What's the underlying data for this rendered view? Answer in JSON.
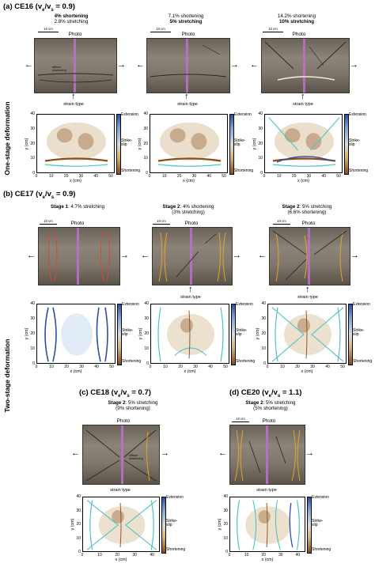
{
  "side_labels": {
    "one_stage": "One-stage deformation",
    "two_stage": "Two-stage deformation"
  },
  "sections": {
    "a": {
      "prefix": "(a) CE16 (v",
      "sub1": "e",
      "mid": "/v",
      "sub2": "s",
      "suffix": " = 0.9)"
    },
    "b": {
      "prefix": "(b) CE17 (v",
      "sub1": "e",
      "mid": "/v",
      "sub2": "s",
      "suffix": " = 0.9)"
    },
    "c": {
      "prefix": "(c) CE18 (v",
      "sub1": "e",
      "mid": "/v",
      "sub2": "s",
      "suffix": " = 0.7)"
    },
    "d": {
      "prefix": "(d) CE20 (v",
      "sub1": "e",
      "mid": "/v",
      "sub2": "s",
      "suffix": " = 1.1)"
    }
  },
  "captions": {
    "a1": {
      "line1": "4% shortening",
      "line2": "2.8% stretching"
    },
    "a2": {
      "line1": "7.1% shortening",
      "line2": "5% stretching"
    },
    "a3": {
      "line1": "14.2% shortening",
      "line2": "10% stretching"
    },
    "b1": {
      "bold": "Stage 1",
      "rest": ": 4.7% stretching"
    },
    "b2": {
      "bold": "Stage 2",
      "rest": ": 4% shortening",
      "line2": "(3% stretching)"
    },
    "b3": {
      "bold": "Stage 2",
      "rest": ": 5% stretching",
      "line2": "(6.6% shortening)"
    },
    "c1": {
      "bold": "Stage 2",
      "rest": ": 5% stretching",
      "line2": "(9% shortening)"
    },
    "d1": {
      "bold": "Stage 2",
      "rest": ": 5% stretching",
      "line2": "(5% shortening)"
    }
  },
  "photo_label": "Photo",
  "scale_label": "10 cm",
  "strain_type_label": "strain type",
  "photo_annotations": {
    "diffuse": "diffuse",
    "shortening": "shortening",
    "nu": "ν",
    "x": "x"
  },
  "colorbar": {
    "extension": "Extension",
    "strike": "Strike-",
    "slip": "slip",
    "shortening": "Shortening"
  },
  "axes": {
    "x_label": "x (cm)",
    "y_label": "y (cm)"
  },
  "ticks": {
    "y": [
      "0",
      "10",
      "20",
      "30",
      "40"
    ],
    "x_a": [
      "0",
      "10",
      "20",
      "30",
      "40",
      "50"
    ],
    "x_b": [
      "0",
      "10",
      "20",
      "30",
      "40",
      "50"
    ],
    "x_c": [
      "0",
      "10",
      "20",
      "30",
      "40"
    ],
    "x_d": [
      "0",
      "10",
      "20",
      "30",
      "40"
    ]
  },
  "colors": {
    "extension": "#2c4fa8",
    "strike_slip": "#4fc2c8",
    "shortening": "#8a4b18",
    "neutral": "#e8dcc6",
    "stripe": "#be6ecd",
    "fault_orange": "#e6a12e",
    "fault_red": "#d24a3c"
  }
}
